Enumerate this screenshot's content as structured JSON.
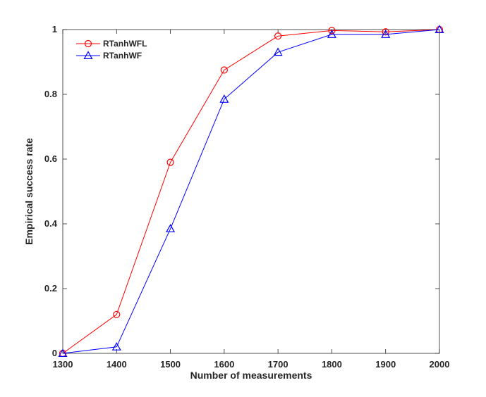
{
  "chart_data": {
    "type": "line",
    "title": "",
    "xlabel": "Number of measurements",
    "ylabel": "Empirical success rate",
    "x": [
      1300,
      1400,
      1500,
      1600,
      1700,
      1800,
      1900,
      2000
    ],
    "x_tick_labels": [
      "1300",
      "1400",
      "1500",
      "1600",
      "1700",
      "1800",
      "1900",
      "2000"
    ],
    "y_ticks": [
      0,
      0.2,
      0.4,
      0.6,
      0.8,
      1
    ],
    "y_tick_labels": [
      "0",
      "0.2",
      "0.4",
      "0.6",
      "0.8",
      "1"
    ],
    "xlim": [
      1300,
      2000
    ],
    "ylim": [
      0,
      1
    ],
    "grid": false,
    "legend_position": "top-left",
    "series": [
      {
        "name": "RTanhWFL",
        "color": "#ff0000",
        "marker": "circle",
        "values": [
          0.0,
          0.12,
          0.59,
          0.875,
          0.98,
          0.997,
          0.993,
          1.0
        ]
      },
      {
        "name": "RTanhWF",
        "color": "#0000ff",
        "marker": "triangle",
        "values": [
          0.0,
          0.02,
          0.385,
          0.785,
          0.93,
          0.985,
          0.985,
          1.0
        ]
      }
    ]
  }
}
